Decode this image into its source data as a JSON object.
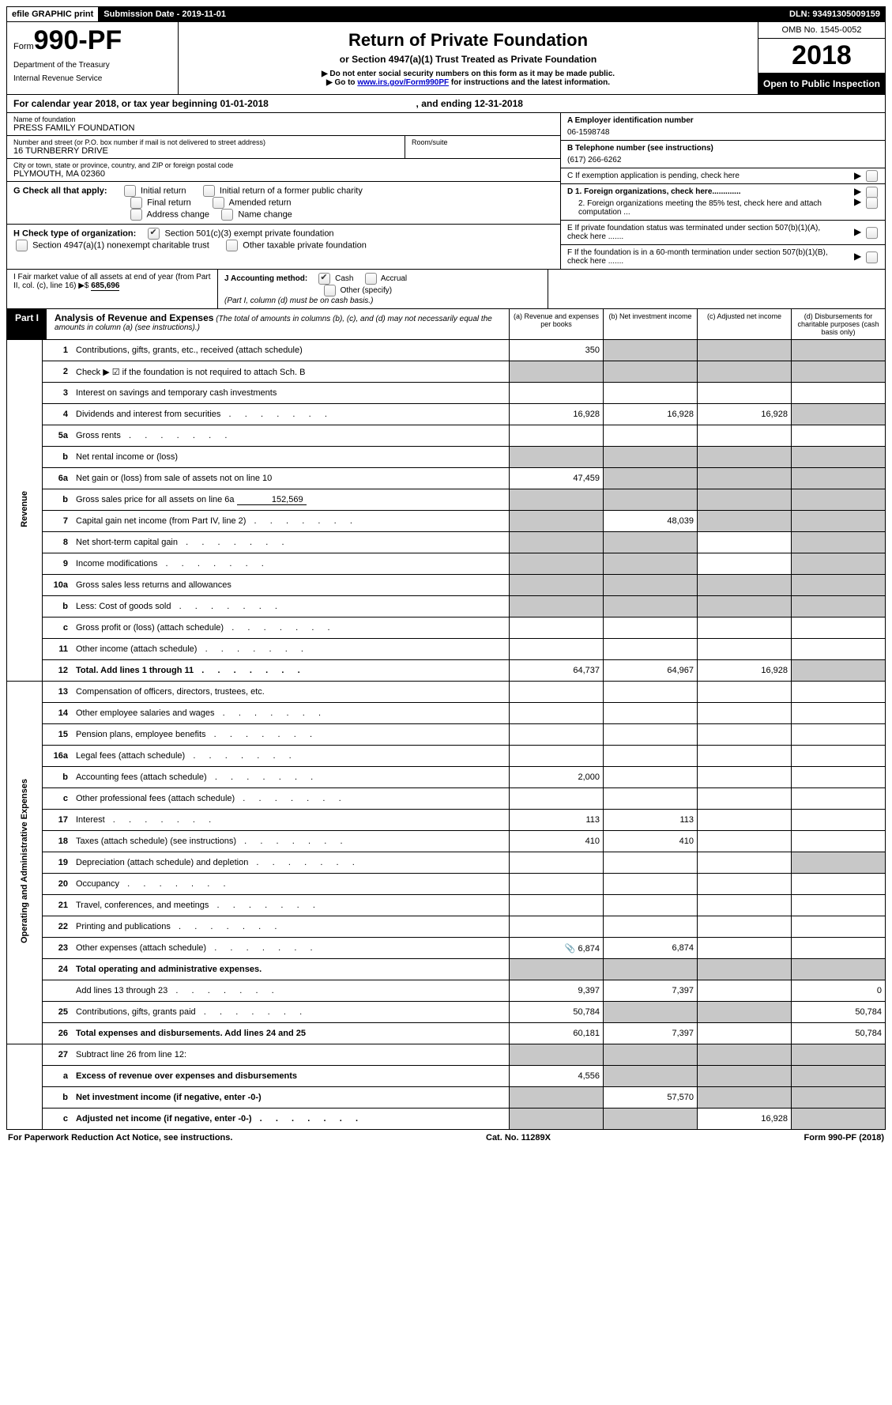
{
  "top_bar": {
    "efile": "efile GRAPHIC print",
    "sub_date_label": "Submission Date - ",
    "sub_date": "2019-11-01",
    "dln_label": "DLN: ",
    "dln": "93491305009159"
  },
  "header": {
    "form_prefix": "Form",
    "form_number": "990-PF",
    "dept1": "Department of the Treasury",
    "dept2": "Internal Revenue Service",
    "title": "Return of Private Foundation",
    "subtitle": "or Section 4947(a)(1) Trust Treated as Private Foundation",
    "warn1": "▶ Do not enter social security numbers on this form as it may be made public.",
    "warn2_pre": "▶ Go to ",
    "warn2_link": "www.irs.gov/Form990PF",
    "warn2_post": " for instructions and the latest information.",
    "omb": "OMB No. 1545-0052",
    "year": "2018",
    "open": "Open to Public Inspection"
  },
  "cal_year": {
    "pre": "For calendar year 2018, or tax year beginning ",
    "begin": "01-01-2018",
    "mid": " , and ending ",
    "end": "12-31-2018"
  },
  "info": {
    "name_lbl": "Name of foundation",
    "name": "PRESS FAMILY FOUNDATION",
    "addr_lbl": "Number and street (or P.O. box number if mail is not delivered to street address)",
    "addr": "16 TURNBERRY DRIVE",
    "room_lbl": "Room/suite",
    "city_lbl": "City or town, state or province, country, and ZIP or foreign postal code",
    "city": "PLYMOUTH, MA  02360",
    "g_lbl": "G Check all that apply:",
    "g_opts": [
      "Initial return",
      "Initial return of a former public charity",
      "Final return",
      "Amended return",
      "Address change",
      "Name change"
    ],
    "h_lbl": "H Check type of organization:",
    "h_opt1": "Section 501(c)(3) exempt private foundation",
    "h_opt2": "Section 4947(a)(1) nonexempt charitable trust",
    "h_opt3": "Other taxable private foundation",
    "a_lbl": "A Employer identification number",
    "a_val": "06-1598748",
    "b_lbl": "B Telephone number (see instructions)",
    "b_val": "(617) 266-6262",
    "c_lbl": "C  If exemption application is pending, check here",
    "d1_lbl": "D 1. Foreign organizations, check here.............",
    "d2_lbl": "2. Foreign organizations meeting the 85% test, check here and attach computation ...",
    "e_lbl": "E  If private foundation status was terminated under section 507(b)(1)(A), check here .......",
    "f_lbl": "F  If the foundation is in a 60-month termination under section 507(b)(1)(B), check here .......",
    "i_lbl": "I Fair market value of all assets at end of year (from Part II, col. (c), line 16) ▶$",
    "i_val": "685,696",
    "j_lbl": "J Accounting method:",
    "j_opt1": "Cash",
    "j_opt2": "Accrual",
    "j_opt3": "Other (specify)",
    "j_note": "(Part I, column (d) must be on cash basis.)"
  },
  "part1": {
    "label": "Part I",
    "title": "Analysis of Revenue and Expenses",
    "note": "(The total of amounts in columns (b), (c), and (d) may not necessarily equal the amounts in column (a) (see instructions).)",
    "col_a": "(a)    Revenue and expenses per books",
    "col_b": "(b)    Net investment income",
    "col_c": "(c)    Adjusted net income",
    "col_d": "(d)    Disbursements for charitable purposes (cash basis only)",
    "side_rev": "Revenue",
    "side_exp": "Operating and Administrative Expenses"
  },
  "rows": {
    "r1": {
      "n": "1",
      "d": "Contributions, gifts, grants, etc., received (attach schedule)",
      "a": "350"
    },
    "r2": {
      "n": "2",
      "d": "Check ▶ ☑ if the foundation is not required to attach Sch. B"
    },
    "r3": {
      "n": "3",
      "d": "Interest on savings and temporary cash investments"
    },
    "r4": {
      "n": "4",
      "d": "Dividends and interest from securities",
      "a": "16,928",
      "b": "16,928",
      "c": "16,928"
    },
    "r5a": {
      "n": "5a",
      "d": "Gross rents"
    },
    "r5b": {
      "n": "b",
      "d": "Net rental income or (loss)"
    },
    "r6a": {
      "n": "6a",
      "d": "Net gain or (loss) from sale of assets not on line 10",
      "a": "47,459"
    },
    "r6b": {
      "n": "b",
      "d": "Gross sales price for all assets on line 6a",
      "inline": "152,569"
    },
    "r7": {
      "n": "7",
      "d": "Capital gain net income (from Part IV, line 2)",
      "b": "48,039"
    },
    "r8": {
      "n": "8",
      "d": "Net short-term capital gain"
    },
    "r9": {
      "n": "9",
      "d": "Income modifications"
    },
    "r10a": {
      "n": "10a",
      "d": "Gross sales less returns and allowances"
    },
    "r10b": {
      "n": "b",
      "d": "Less: Cost of goods sold"
    },
    "r10c": {
      "n": "c",
      "d": "Gross profit or (loss) (attach schedule)"
    },
    "r11": {
      "n": "11",
      "d": "Other income (attach schedule)"
    },
    "r12": {
      "n": "12",
      "d": "Total. Add lines 1 through 11",
      "a": "64,737",
      "b": "64,967",
      "c": "16,928",
      "bold": true
    },
    "r13": {
      "n": "13",
      "d": "Compensation of officers, directors, trustees, etc."
    },
    "r14": {
      "n": "14",
      "d": "Other employee salaries and wages"
    },
    "r15": {
      "n": "15",
      "d": "Pension plans, employee benefits"
    },
    "r16a": {
      "n": "16a",
      "d": "Legal fees (attach schedule)"
    },
    "r16b": {
      "n": "b",
      "d": "Accounting fees (attach schedule)",
      "a": "2,000"
    },
    "r16c": {
      "n": "c",
      "d": "Other professional fees (attach schedule)"
    },
    "r17": {
      "n": "17",
      "d": "Interest",
      "a": "113",
      "b": "113"
    },
    "r18": {
      "n": "18",
      "d": "Taxes (attach schedule) (see instructions)",
      "a": "410",
      "b": "410"
    },
    "r19": {
      "n": "19",
      "d": "Depreciation (attach schedule) and depletion"
    },
    "r20": {
      "n": "20",
      "d": "Occupancy"
    },
    "r21": {
      "n": "21",
      "d": "Travel, conferences, and meetings"
    },
    "r22": {
      "n": "22",
      "d": "Printing and publications"
    },
    "r23": {
      "n": "23",
      "d": "Other expenses (attach schedule)",
      "a": "6,874",
      "b": "6,874",
      "icon": true
    },
    "r24": {
      "n": "24",
      "d": "Total operating and administrative expenses.",
      "bold": true
    },
    "r24b": {
      "n": "",
      "d": "Add lines 13 through 23",
      "a": "9,397",
      "b": "7,397",
      "dd": "0"
    },
    "r25": {
      "n": "25",
      "d": "Contributions, gifts, grants paid",
      "a": "50,784",
      "dd": "50,784"
    },
    "r26": {
      "n": "26",
      "d": "Total expenses and disbursements. Add lines 24 and 25",
      "a": "60,181",
      "b": "7,397",
      "dd": "50,784",
      "bold": true
    },
    "r27": {
      "n": "27",
      "d": "Subtract line 26 from line 12:"
    },
    "r27a": {
      "n": "a",
      "d": "Excess of revenue over expenses and disbursements",
      "a": "4,556",
      "bold": true
    },
    "r27b": {
      "n": "b",
      "d": "Net investment income (if negative, enter -0-)",
      "b": "57,570",
      "bold": true
    },
    "r27c": {
      "n": "c",
      "d": "Adjusted net income (if negative, enter -0-)",
      "c": "16,928",
      "bold": true
    }
  },
  "footer": {
    "left": "For Paperwork Reduction Act Notice, see instructions.",
    "mid": "Cat. No. 11289X",
    "right": "Form 990-PF (2018)"
  }
}
